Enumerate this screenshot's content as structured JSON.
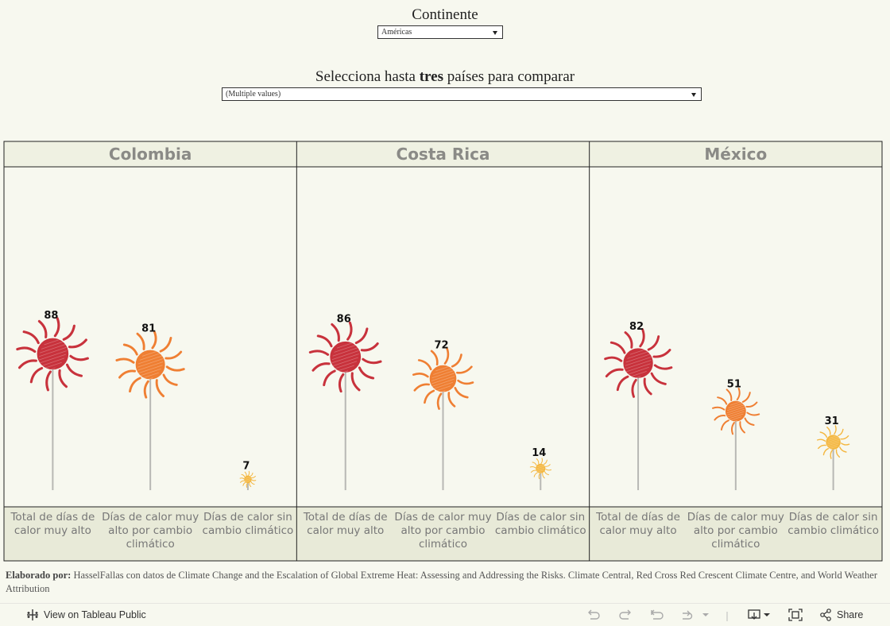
{
  "filters": {
    "continent_title": "Continente",
    "continent_value": "Américas",
    "countries_title_pre": "Selecciona hasta",
    "countries_title_bold": "tres",
    "countries_title_post": "países para comparar",
    "countries_value": "(Multiple values)"
  },
  "chart_data": {
    "type": "lollipop",
    "panels": [
      "Colombia",
      "Costa Rica",
      "México"
    ],
    "categories": [
      "Total de días de calor muy alto",
      "Días de calor muy alto por cambio climático",
      "Días de calor sin cambio climático"
    ],
    "category_lines": [
      [
        "Total de días de",
        "calor muy alto"
      ],
      [
        "Días de calor muy",
        "alto por cambio",
        "climático"
      ],
      [
        "Días de calor sin",
        "cambio climático"
      ]
    ],
    "values": [
      [
        88,
        81,
        7
      ],
      [
        86,
        72,
        14
      ],
      [
        82,
        51,
        31
      ]
    ],
    "colors": [
      "#c8323c",
      "#ef7f33",
      "#f4b740"
    ]
  },
  "footer": {
    "credit_label": "Elaborado por:",
    "credit_text": "HasselFallas con datos de Climate Change and the Escalation of Global Extreme Heat: Assessing and Addressing the Risks. Climate Central, Red Cross Red Crescent Climate Centre, and World Weather Attribution"
  },
  "toolbar": {
    "view_label": "View on Tableau Public",
    "share_label": "Share"
  }
}
